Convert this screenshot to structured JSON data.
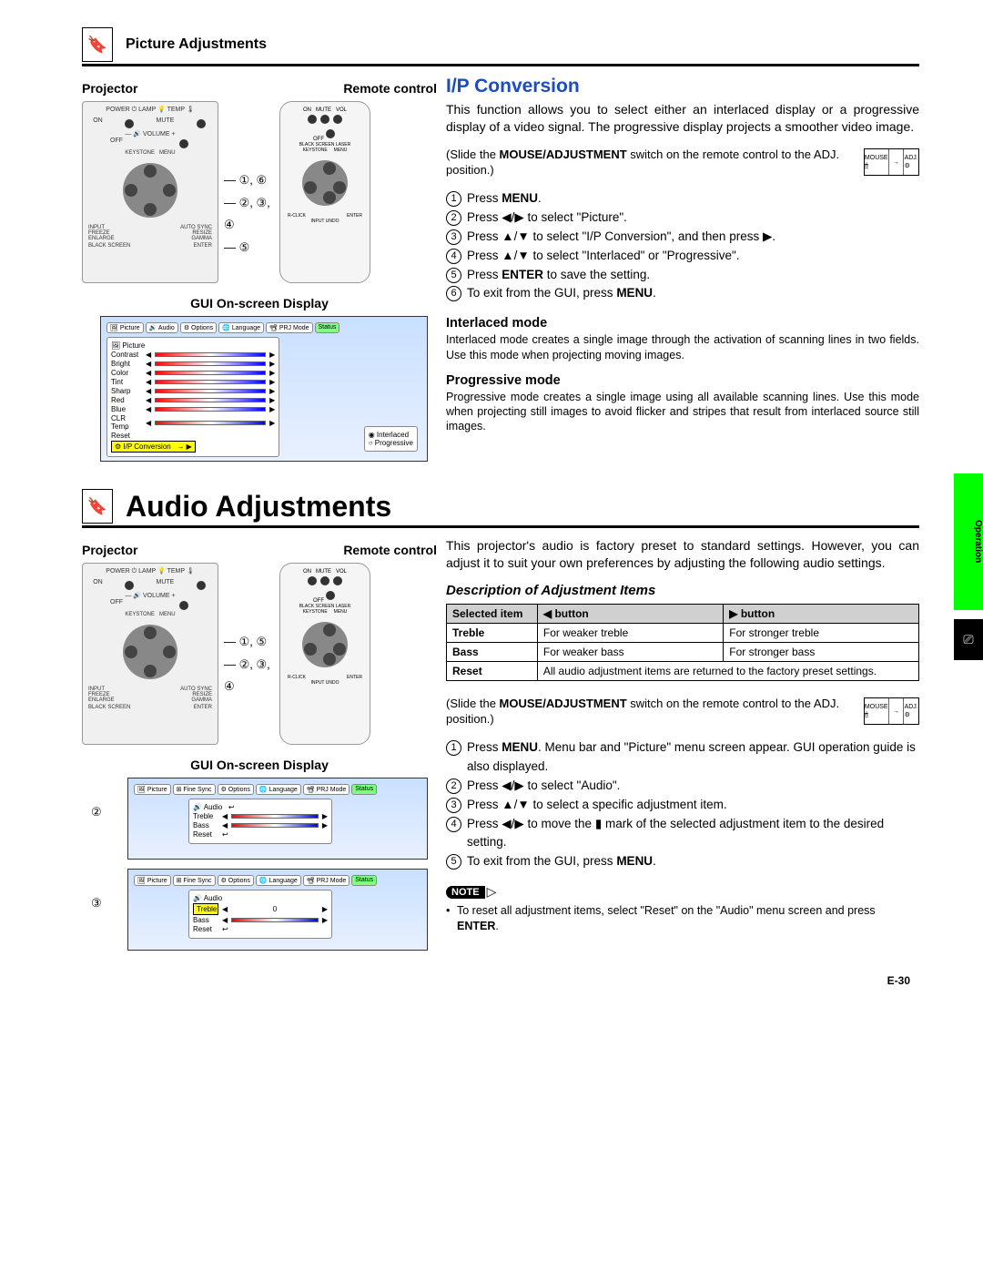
{
  "page_number": "E-30",
  "side_tab": "Operation",
  "section1": {
    "title": "Picture Adjustments",
    "projector_label": "Projector",
    "remote_label": "Remote control",
    "callouts_top": "①, ⑥",
    "callouts_mid": "②, ③, ④",
    "callouts_bot": "⑤",
    "gui_label": "GUI On-screen Display",
    "gui_tabs": [
      "Picture",
      "Audio",
      "Options",
      "Language",
      "PRJ Mode",
      "Status"
    ],
    "gui_items": [
      "Contrast",
      "Bright",
      "Color",
      "Tint",
      "Sharp",
      "Red",
      "Blue",
      "CLR Temp",
      "Reset"
    ],
    "gui_highlight": "I/P Conversion",
    "gui_opts": [
      "Interlaced",
      "Progressive"
    ],
    "heading": "I/P Conversion",
    "intro": "This function allows you to select either an interlaced display or a progressive display of a video signal. The progressive display projects a smoother video image.",
    "slide_line1": "(Slide the ",
    "slide_bold": "MOUSE/ADJUSTMENT",
    "slide_line2": " switch on the remote control to the ADJ. position.)",
    "switch_labels": [
      "MOUSE",
      "→",
      "ADJ."
    ],
    "steps": [
      "Press <b>MENU</b>.",
      "Press ◀/▶ to select \"Picture\".",
      "Press ▲/▼ to select \"I/P Conversion\", and then press ▶.",
      "Press ▲/▼ to select \"Interlaced\" or \"Progressive\".",
      "Press <b>ENTER</b> to save the setting.",
      "To exit from the GUI, press <b>MENU</b>."
    ],
    "interlaced_h": "Interlaced mode",
    "interlaced_t": "Interlaced mode creates a single image through the activation of scanning lines in two fields. Use this mode when projecting moving images.",
    "progressive_h": "Progressive mode",
    "progressive_t": "Progressive mode creates a single image using all available scanning lines. Use this mode when projecting still images to avoid flicker and stripes that result from interlaced source still images."
  },
  "section2": {
    "title": "Audio Adjustments",
    "projector_label": "Projector",
    "remote_label": "Remote control",
    "callouts_top": "①, ⑤",
    "callouts_mid": "②, ③, ④",
    "gui_label": "GUI On-screen Display",
    "gui2_marker": "②",
    "gui3_marker": "③",
    "gui_tabs": [
      "Picture",
      "Fine Sync",
      "Options",
      "Language",
      "PRJ Mode",
      "Status"
    ],
    "gui_audio_label": "Audio",
    "gui_items": [
      "Treble",
      "Bass",
      "Reset"
    ],
    "intro": "This projector's audio is factory preset to standard settings. However, you can adjust it to suit your own preferences by adjusting the following audio settings.",
    "desc_h": "Description of Adjustment Items",
    "table": {
      "headers": [
        "Selected item",
        "◀ button",
        "▶ button"
      ],
      "rows": [
        [
          "Treble",
          "For weaker treble",
          "For stronger treble"
        ],
        [
          "Bass",
          "For weaker bass",
          "For stronger bass"
        ],
        [
          "Reset",
          "All audio adjustment items are returned to the factory preset settings.",
          ""
        ]
      ],
      "reset_colspan": true
    },
    "slide_line1": "(Slide the ",
    "slide_bold": "MOUSE/ADJUSTMENT",
    "slide_line2": " switch on the remote control to the ADJ. position.)",
    "steps": [
      "Press <b>MENU</b>. Menu bar and \"Picture\" menu screen appear. GUI operation guide is also displayed.",
      "Press ◀/▶ to select \"Audio\".",
      "Press ▲/▼ to select a specific adjustment item.",
      "Press ◀/▶ to move the ▮ mark of the selected adjustment item to the desired setting.",
      "To exit from the GUI, press <b>MENU</b>."
    ],
    "note_label": "NOTE",
    "note_text": "To reset all adjustment items, select \"Reset\" on the \"Audio\" menu screen and press <b>ENTER</b>."
  }
}
